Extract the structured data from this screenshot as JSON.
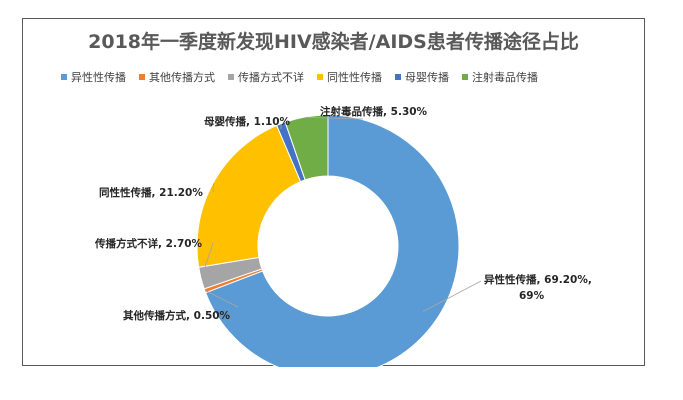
{
  "chart_data": {
    "type": "pie",
    "title": "2018年一季度新发现HIV感染者/AIDS患者传播途径占比",
    "legend_position": "top",
    "categories": [
      "异性性传播",
      "其他传播方式",
      "传播方式不详",
      "同性性传播",
      "母婴传播",
      "注射毒品传播"
    ],
    "values": [
      69.2,
      0.5,
      2.7,
      21.2,
      1.1,
      5.3
    ],
    "colors": [
      "#5b9bd5",
      "#ed7d31",
      "#a5a5a5",
      "#ffc000",
      "#4472c4",
      "#70ad47"
    ],
    "data_labels": [
      [
        "异性性传播, 69.20%,",
        "69%"
      ],
      [
        "其他传播方式, 0.50%"
      ],
      [
        "传播方式不详, 2.70%"
      ],
      [
        "同性性传播, 21.20%"
      ],
      [
        "母婴传播, 1.10%"
      ],
      [
        "注射毒品传播, 5.30%"
      ]
    ]
  }
}
